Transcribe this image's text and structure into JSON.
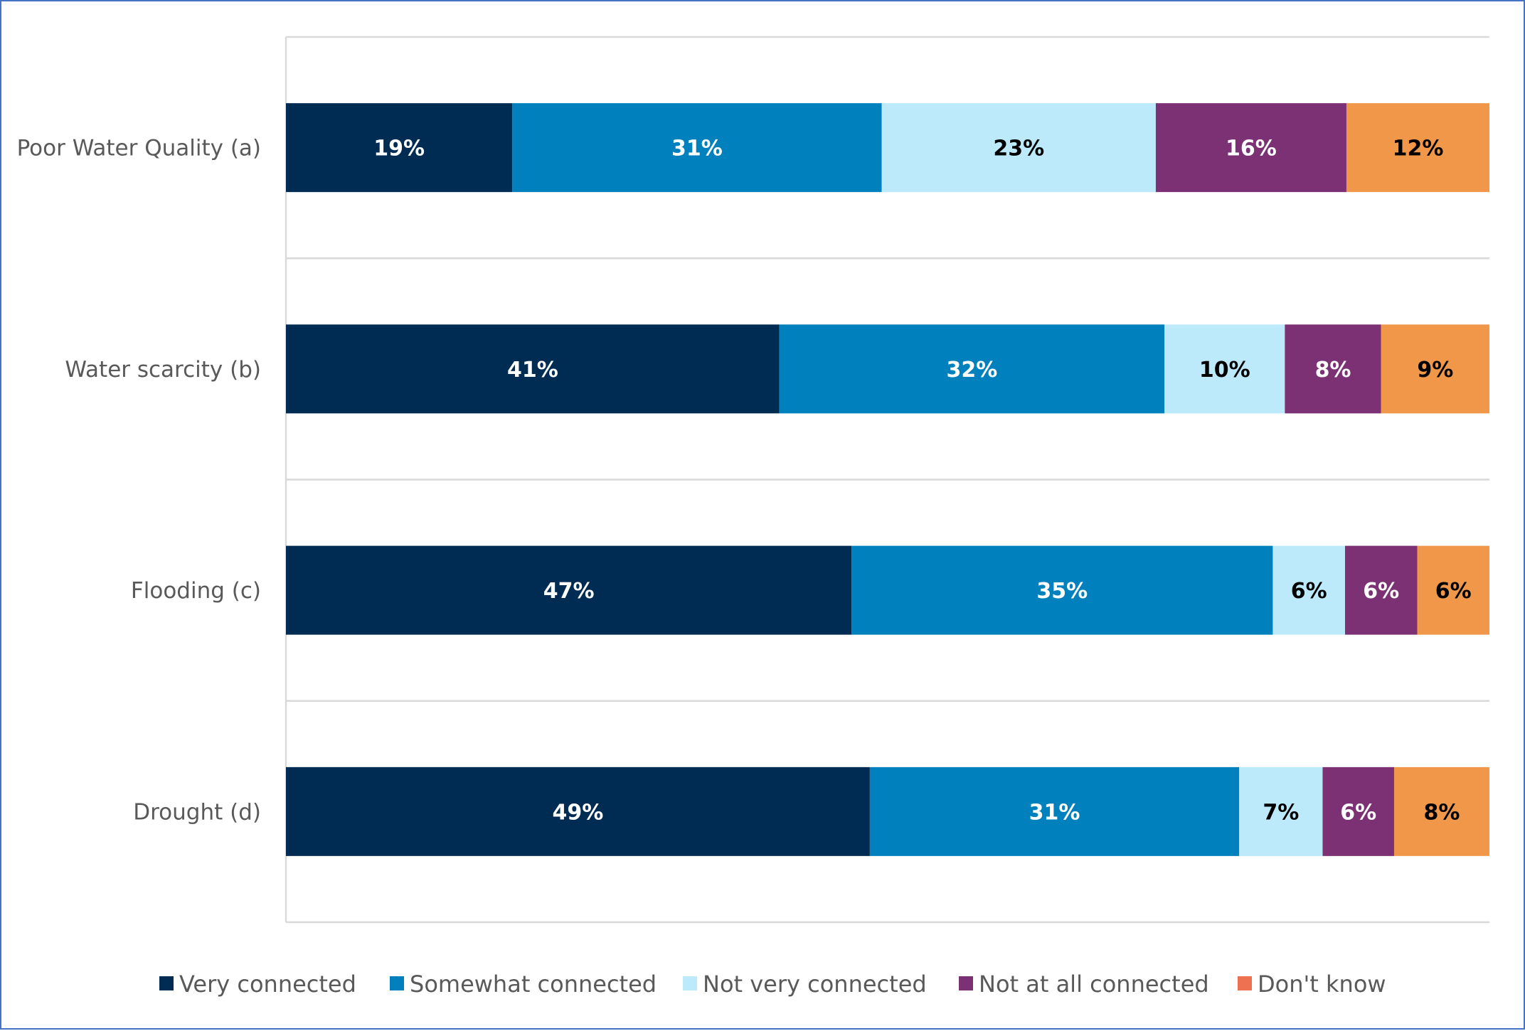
{
  "chart_data": {
    "type": "bar",
    "orientation": "horizontal",
    "stacked": true,
    "categories": [
      "Poor Water Quality (a)",
      "Water scarcity (b)",
      "Flooding (c)",
      "Drought (d)"
    ],
    "series": [
      {
        "name": "Very connected",
        "color": "#002b52",
        "label_color": "#ffffff",
        "values": [
          19,
          41,
          47,
          49
        ],
        "labels": [
          "19%",
          "41%",
          "47%",
          "49%"
        ]
      },
      {
        "name": "Somewhat connected",
        "color": "#0081bd",
        "label_color": "#ffffff",
        "values": [
          31,
          32,
          35,
          31
        ],
        "labels": [
          "31%",
          "32%",
          "35%",
          "31%"
        ]
      },
      {
        "name": "Not very connected",
        "color": "#bdeafb",
        "label_color": "#000000",
        "values": [
          23,
          10,
          6,
          7
        ],
        "labels": [
          "23%",
          "10%",
          "6%",
          "7%"
        ]
      },
      {
        "name": "Not at all connected",
        "color": "#7b3174",
        "label_color": "#ffffff",
        "values": [
          16,
          8,
          6,
          6
        ],
        "labels": [
          "16%",
          "8%",
          "6%",
          "6%"
        ]
      },
      {
        "name": "Don't know",
        "color": "#f0974a",
        "label_color": "#000000",
        "values": [
          12,
          9,
          6,
          8
        ],
        "labels": [
          "12%",
          "9%",
          "6%",
          "8%"
        ]
      }
    ],
    "legend": {
      "position": "bottom",
      "swatch_colors": [
        "#002b52",
        "#0081bd",
        "#bdeafb",
        "#7b3174",
        "#ee7152"
      ]
    },
    "gridlines": true,
    "xlim": [
      0,
      100
    ],
    "title": "",
    "xlabel": "",
    "ylabel": ""
  }
}
